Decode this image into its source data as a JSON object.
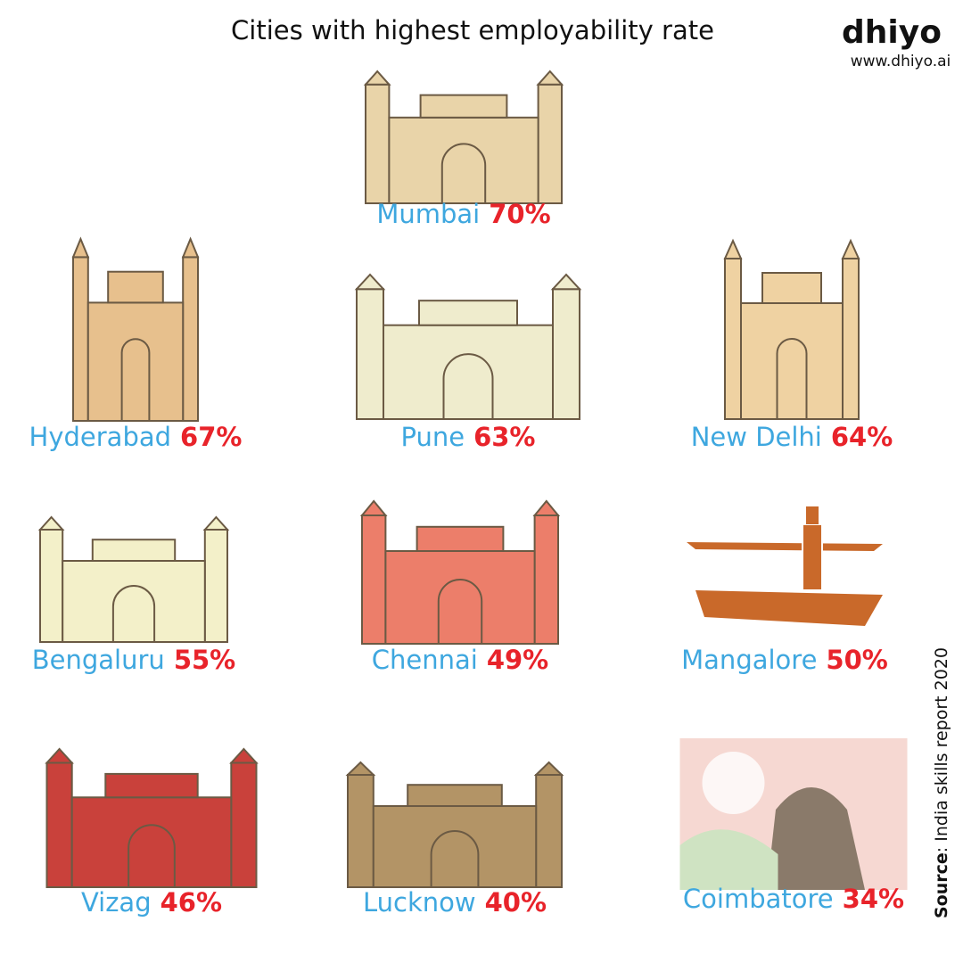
{
  "title": "Cities with highest employability rate",
  "brand": {
    "name": "dhiyo",
    "url": "www.dhiyo.ai"
  },
  "cities": [
    {
      "name": "Mumbai",
      "rate": "70%"
    },
    {
      "name": "Hyderabad",
      "rate": "67%"
    },
    {
      "name": "Pune",
      "rate": "63%"
    },
    {
      "name": "New Delhi",
      "rate": "64%"
    },
    {
      "name": "Bengaluru",
      "rate": "55%"
    },
    {
      "name": "Chennai",
      "rate": "49%"
    },
    {
      "name": "Mangalore",
      "rate": "50%"
    },
    {
      "name": "Vizag",
      "rate": "46%"
    },
    {
      "name": "Lucknow",
      "rate": "40%"
    },
    {
      "name": "Coimbatore",
      "rate": "34%"
    }
  ],
  "source": {
    "label": "Source",
    "text": ": India skills report 2020"
  }
}
